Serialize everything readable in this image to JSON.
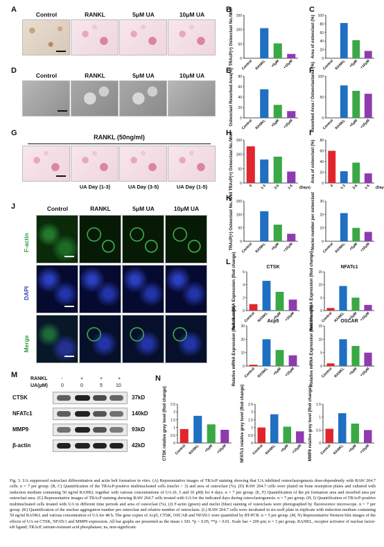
{
  "groups": [
    "Control",
    "RANKL",
    "5μM UA",
    "10μM UA"
  ],
  "panel_letters": [
    "A",
    "B",
    "C",
    "D",
    "E",
    "F",
    "G",
    "H",
    "I",
    "J",
    "K",
    "L",
    "M",
    "N"
  ],
  "panel_g_header": "RANKL (50ng/ml)",
  "panel_g_sub": [
    "UA Day (1-3)",
    "UA Day (3-5)",
    "UA Day (1-5)"
  ],
  "panel_j_rows": [
    "F-actin",
    "DAPI",
    "Merge"
  ],
  "panel_m": {
    "header_rankl": "RANKL",
    "header_ua": "UA(μM)",
    "rankl_values": [
      "-",
      "+",
      "+",
      "+"
    ],
    "ua_values": [
      "0",
      "0",
      "5",
      "10"
    ],
    "proteins": [
      "CTSK",
      "NFATc1",
      "MMP9",
      "β-actin"
    ],
    "sizes": [
      "37kD",
      "140kD",
      "93kD",
      "42kD"
    ]
  },
  "colors": {
    "control": "#e0262d",
    "rankl": "#1f6fc2",
    "ua5": "#3aa845",
    "ua10": "#8e3bb0"
  },
  "charts_tick_labels": {
    "treat": [
      "Control",
      "RANKL",
      "+5μM",
      "+10μM"
    ],
    "days": [
      "0",
      "1-3",
      "3-5",
      "1-5"
    ],
    "days_suffix": "(Days)"
  },
  "chart_data": [
    {
      "id": "B",
      "type": "bar",
      "ylabel": "TRAcP(+) Osteoclast No./Well",
      "categories": [
        "Control",
        "RANKL",
        "+5μM",
        "+10μM"
      ],
      "values": [
        0,
        105,
        52,
        15
      ],
      "ylim": [
        0,
        150
      ],
      "yticks": [
        0,
        50,
        100,
        150
      ]
    },
    {
      "id": "C",
      "type": "bar",
      "ylabel": "Area of osteoclast (%)",
      "categories": [
        "Control",
        "RANKL",
        "+5μM",
        "+10μM"
      ],
      "values": [
        0,
        82,
        42,
        17
      ],
      "ylim": [
        0,
        100
      ],
      "yticks": [
        0,
        20,
        40,
        60,
        80,
        100
      ]
    },
    {
      "id": "E",
      "type": "bar",
      "ylabel": "Osteoclast Resorbed Area(%)",
      "categories": [
        "Control",
        "RANKL",
        "+5μM",
        "+10μM"
      ],
      "values": [
        0,
        55,
        25,
        13
      ],
      "ylim": [
        0,
        80
      ],
      "yticks": [
        0,
        20,
        40,
        60,
        80
      ]
    },
    {
      "id": "F",
      "type": "bar",
      "ylabel": "Resorbed Area / Osteoclastarea (%)",
      "categories": [
        "Control",
        "RANKL",
        "+5μM",
        "+10μM"
      ],
      "values": [
        0,
        78,
        65,
        58
      ],
      "ylim": [
        0,
        100
      ],
      "yticks": [
        0,
        50,
        100
      ]
    },
    {
      "id": "H",
      "type": "bar",
      "ylabel": "TRAcP(+) Osteoclast No./Well",
      "categories": [
        "0",
        "1-3",
        "3-5",
        "1-5"
      ],
      "values": [
        128,
        82,
        92,
        40
      ],
      "ylim": [
        0,
        150
      ],
      "yticks": [
        0,
        50,
        100,
        150
      ]
    },
    {
      "id": "I",
      "type": "bar",
      "ylabel": "Area of osteoclast (%)",
      "categories": [
        "0",
        "1-3",
        "3-5",
        "1-5"
      ],
      "values": [
        60,
        22,
        38,
        18
      ],
      "ylim": [
        0,
        80
      ],
      "yticks": [
        0,
        20,
        40,
        60,
        80
      ]
    },
    {
      "id": "K1",
      "type": "bar",
      "ylabel": "TRAcP(+) Osteoclast No./Well",
      "categories": [
        "Control",
        "RANKL",
        "+5μM",
        "+10μM"
      ],
      "values": [
        0,
        112,
        62,
        28
      ],
      "ylim": [
        0,
        150
      ],
      "yticks": [
        0,
        50,
        100,
        150
      ]
    },
    {
      "id": "K2",
      "type": "bar",
      "ylabel": "Nuclei number per osteoclast",
      "categories": [
        "Control",
        "RANKL",
        "+5μM",
        "+10μM"
      ],
      "values": [
        0,
        21,
        10,
        7
      ],
      "ylim": [
        0,
        30
      ],
      "yticks": [
        0,
        10,
        20,
        30
      ]
    },
    {
      "id": "L1",
      "type": "bar",
      "title": "CTSK",
      "ylabel": "Relatie mRNA Expression (flod change)",
      "categories": [
        "Control",
        "RANKL",
        "+5μM",
        "+10μM"
      ],
      "values": [
        1,
        4.6,
        2.9,
        1.7
      ],
      "ylim": [
        0,
        6
      ],
      "yticks": [
        0,
        2,
        4,
        6
      ]
    },
    {
      "id": "L2",
      "type": "bar",
      "title": "NFATc1",
      "ylabel": "Relative mRNA Expression (flod change)",
      "categories": [
        "Control",
        "RANKL",
        "+5μM",
        "+10μM"
      ],
      "values": [
        1,
        9.5,
        5,
        2.2
      ],
      "ylim": [
        0,
        15
      ],
      "yticks": [
        0,
        5,
        10,
        15
      ]
    },
    {
      "id": "L3",
      "type": "bar",
      "title": "Acp5",
      "ylabel": "Relative mRNA Expression (flod change)",
      "categories": [
        "Control",
        "RANKL",
        "+5μM",
        "+10μM"
      ],
      "values": [
        1,
        20,
        12,
        8
      ],
      "ylim": [
        0,
        30
      ],
      "yticks": [
        0,
        10,
        20,
        30
      ]
    },
    {
      "id": "L4",
      "type": "bar",
      "title": "OSCAR",
      "ylabel": "Relative mRNA Expression (flod change)",
      "categories": [
        "Control",
        "RANKL",
        "+5μM",
        "+10μM"
      ],
      "values": [
        1,
        10,
        7.5,
        5
      ],
      "ylim": [
        0,
        15
      ],
      "yticks": [
        0,
        5,
        10,
        15
      ]
    },
    {
      "id": "N1",
      "type": "bar",
      "ylabel": "CTSK relative grey level (flod change)",
      "categories": [
        "Control",
        "RANKL",
        "+5μM",
        "+10μM"
      ],
      "values": [
        0.9,
        1.75,
        1.2,
        0.85
      ],
      "ylim": [
        0,
        2.5
      ],
      "yticks": [
        0,
        0.5,
        1,
        1.5,
        2,
        2.5
      ]
    },
    {
      "id": "N2",
      "type": "bar",
      "ylabel": "NFATc1 relative grey level (flod change)",
      "categories": [
        "Control",
        "RANKL",
        "+5μM",
        "+10μM"
      ],
      "values": [
        1.0,
        1.85,
        1.05,
        0.75
      ],
      "ylim": [
        0,
        2.5
      ],
      "yticks": [
        0,
        0.5,
        1,
        1.5,
        2,
        2.5
      ]
    },
    {
      "id": "N3",
      "type": "bar",
      "ylabel": "MMP9 relative grey level (flod change)",
      "categories": [
        "Control",
        "RANKL",
        "+5μM",
        "+10μM"
      ],
      "values": [
        0.55,
        1.15,
        0.75,
        0.5
      ],
      "ylim": [
        0,
        1.5
      ],
      "yticks": [
        0,
        0.5,
        1,
        1.5
      ]
    }
  ],
  "caption": "Fig. 3. UA suppressed osteoclast differentiation and actin belt formation in vitro. (A) Representative images of TRAcP staining showing that UA inhibited osteoclastogenesis dose-dependently with RAW 264.7 cells. n = 7 per group. (B, C) Quantification of the TRAcP-positive multinucleated cells (nuclei > 3) and area of osteoclast (%). (D) RAW 264.7 cells were plated on bone resorption plates and cultured with induction medium containing 50 ng/ml RANKL together with various concentrations of UA (0, 5 and 10 μM) for 4 days. n = 7 per group. (E, F) Quantification of the pit formation area and resorbed area per osteoclast area. (G) Representative images of TRAcP staining showing RAW 264.7 cells treated with UA for the indicated days during osteoclastogenesis. n = 7 per group. (H, I) Quantification of TRAcP-positive multinucleated cells treated with UA in different time periods and area of osteoclast (%). (J) F-actin (green) and nuclei (blue) staining of osteoclasts were photographed by fluorescence microscope. n = 7 per group. (K) Quantification of the nuclear aggregation number per osteoclast and relative number of osteoclasts. (L) RAW 264.7 cells were incubated in six-well plate in triplicate with induction medium containing 50 ng/ml RANKL and various concentration of UA for 48 h. The gene copies of Acp5, CTSK, OSCAR and NFATc1 were quantified by RT-PCR. n = 5 per group. (M, N) Representative Western blot images of the effects of UA on CTSK, NFATc1 and MMP9 expression. All bar graphs are presented as the mean ± SD. *p < 0.05, **p < 0.01. Scale bar = 200 μm; n = 3 per group. RANKL, receptor activator of nuclear factor-κB ligand; TRAcP, tartrate-resistant acid phosphatase; ns, non-significant."
}
